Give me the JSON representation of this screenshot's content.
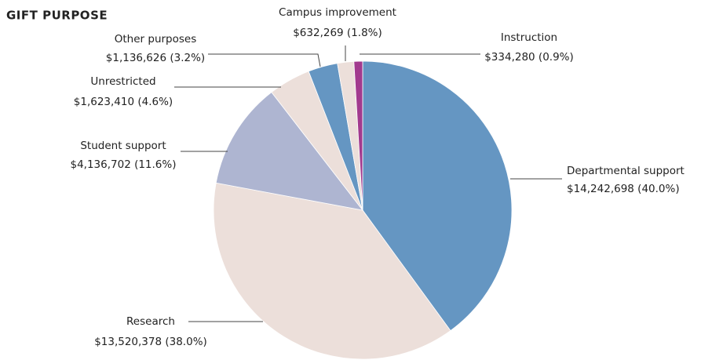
{
  "chart_data": {
    "type": "pie",
    "title": "GIFT PURPOSE",
    "categories": [
      "Departmental support",
      "Research",
      "Student support",
      "Unrestricted",
      "Other purposes",
      "Campus improvement",
      "Instruction"
    ],
    "values": [
      14242698,
      13520378,
      4136702,
      1623410,
      1136626,
      632269,
      334280
    ],
    "value_labels": [
      "$14,242,698  (40.0%)",
      "$13,520,378  (38.0%)",
      "$4,136,702  (11.6%)",
      "$1,623,410  (4.6%)",
      "$1,136,626  (3.2%)",
      "$632,269  (1.8%)",
      "$334,280  (0.9%)"
    ],
    "colors": [
      "#6596c2",
      "#ecdfda",
      "#aeb5d1",
      "#ecdfda",
      "#6596c2",
      "#ecdfda",
      "#a23a8e"
    ]
  }
}
